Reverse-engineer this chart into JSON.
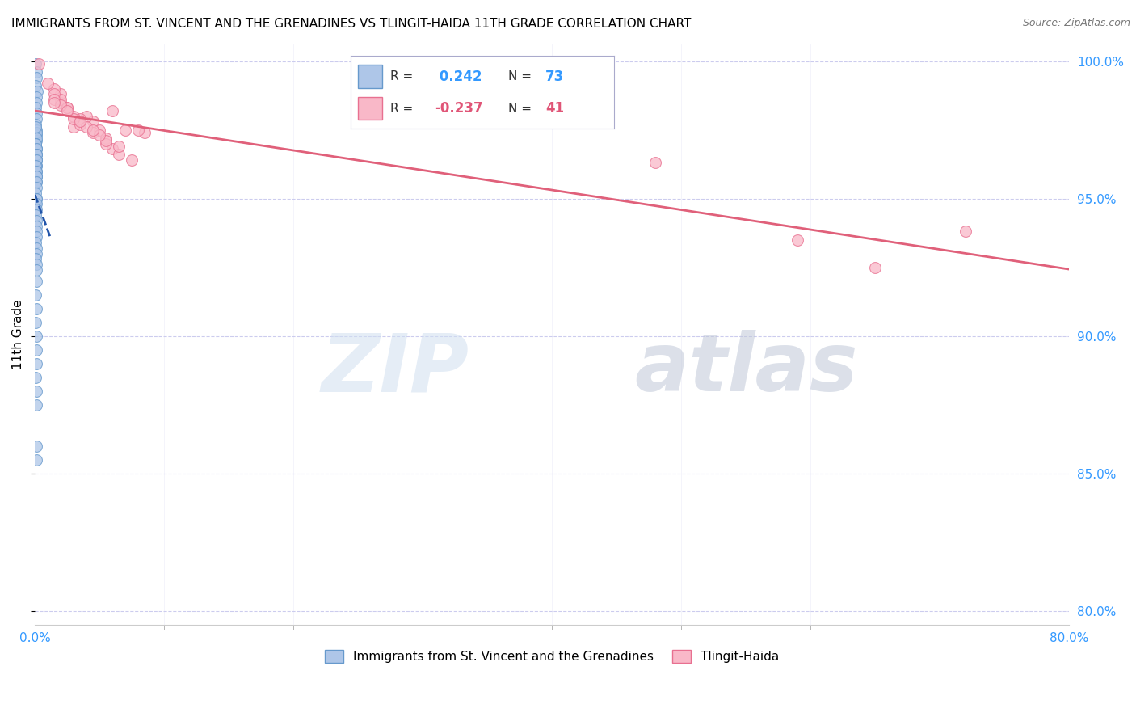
{
  "title": "IMMIGRANTS FROM ST. VINCENT AND THE GRENADINES VS TLINGIT-HAIDA 11TH GRADE CORRELATION CHART",
  "source": "Source: ZipAtlas.com",
  "ylabel": "11th Grade",
  "R_blue": 0.242,
  "N_blue": 73,
  "R_pink": -0.237,
  "N_pink": 41,
  "blue_color": "#aec6e8",
  "blue_edge_color": "#6699cc",
  "pink_color": "#f9b8c8",
  "pink_edge_color": "#e87090",
  "blue_line_color": "#2255aa",
  "pink_line_color": "#e0607a",
  "blue_scatter_x": [
    0.0008,
    0.001,
    0.0012,
    0.0008,
    0.0015,
    0.0009,
    0.0011,
    0.0007,
    0.0013,
    0.001,
    0.0008,
    0.0012,
    0.0009,
    0.0011,
    0.0007,
    0.001,
    0.0013,
    0.0008,
    0.0011,
    0.0009,
    0.0012,
    0.0008,
    0.001,
    0.0007,
    0.0013,
    0.0009,
    0.0011,
    0.0008,
    0.0012,
    0.001,
    0.0009,
    0.0011,
    0.0008,
    0.0013,
    0.001,
    0.0009,
    0.0011,
    0.0007,
    0.0012,
    0.001,
    0.0008,
    0.0011,
    0.0009,
    0.0013,
    0.0007,
    0.001,
    0.0008,
    0.0012,
    0.0009,
    0.0011,
    0.0008,
    0.0013,
    0.001,
    0.0009,
    0.0011,
    0.0007,
    0.0012,
    0.001,
    0.0008,
    0.0011,
    0.0009,
    0.0013,
    0.0007,
    0.001,
    0.0008,
    0.0012,
    0.0009,
    0.0011,
    0.0008,
    0.0013,
    0.001,
    0.0009,
    0.0011
  ],
  "blue_scatter_y": [
    0.999,
    0.996,
    0.994,
    0.991,
    0.989,
    0.987,
    0.985,
    0.983,
    0.981,
    0.979,
    0.977,
    0.975,
    0.973,
    0.971,
    0.969,
    0.974,
    0.972,
    0.97,
    0.968,
    0.966,
    0.964,
    0.976,
    0.968,
    0.966,
    0.964,
    0.962,
    0.96,
    0.97,
    0.968,
    0.966,
    0.964,
    0.962,
    0.96,
    0.958,
    0.956,
    0.966,
    0.964,
    0.962,
    0.96,
    0.958,
    0.956,
    0.958,
    0.956,
    0.954,
    0.952,
    0.95,
    0.948,
    0.95,
    0.948,
    0.946,
    0.944,
    0.942,
    0.94,
    0.938,
    0.936,
    0.934,
    0.932,
    0.93,
    0.928,
    0.926,
    0.924,
    0.92,
    0.915,
    0.91,
    0.905,
    0.9,
    0.895,
    0.89,
    0.885,
    0.88,
    0.875,
    0.86,
    0.855
  ],
  "pink_scatter_x": [
    0.003,
    0.02,
    0.06,
    0.02,
    0.015,
    0.045,
    0.025,
    0.05,
    0.085,
    0.04,
    0.03,
    0.02,
    0.01,
    0.035,
    0.055,
    0.07,
    0.015,
    0.025,
    0.06,
    0.035,
    0.045,
    0.055,
    0.065,
    0.03,
    0.04,
    0.015,
    0.055,
    0.08,
    0.02,
    0.03,
    0.05,
    0.065,
    0.075,
    0.045,
    0.035,
    0.025,
    0.015,
    0.48,
    0.59,
    0.65,
    0.72
  ],
  "pink_scatter_y": [
    0.999,
    0.985,
    0.982,
    0.988,
    0.99,
    0.978,
    0.983,
    0.975,
    0.974,
    0.98,
    0.976,
    0.986,
    0.992,
    0.979,
    0.972,
    0.975,
    0.988,
    0.983,
    0.968,
    0.977,
    0.974,
    0.97,
    0.966,
    0.98,
    0.976,
    0.986,
    0.971,
    0.975,
    0.984,
    0.979,
    0.973,
    0.969,
    0.964,
    0.975,
    0.978,
    0.982,
    0.985,
    0.963,
    0.935,
    0.925,
    0.938
  ],
  "xlim": [
    0.0,
    0.8
  ],
  "ylim": [
    0.795,
    1.006
  ],
  "yticks": [
    0.8,
    0.85,
    0.9,
    0.95,
    1.0
  ],
  "ytick_labels": [
    "80.0%",
    "85.0%",
    "90.0%",
    "95.0%",
    "100.0%"
  ],
  "xtick_left_label": "0.0%",
  "xtick_right_label": "80.0%",
  "xtick_minor_positions": [
    0.1,
    0.2,
    0.3,
    0.4,
    0.5,
    0.6,
    0.7
  ],
  "watermark_zip": "ZIP",
  "watermark_atlas": "atlas",
  "legend_blue_label": "Immigrants from St. Vincent and the Grenadines",
  "legend_pink_label": "Tlingit-Haida",
  "title_fontsize": 11,
  "axis_label_color": "#3399ff",
  "grid_color": "#ccccee",
  "marker_size": 100
}
